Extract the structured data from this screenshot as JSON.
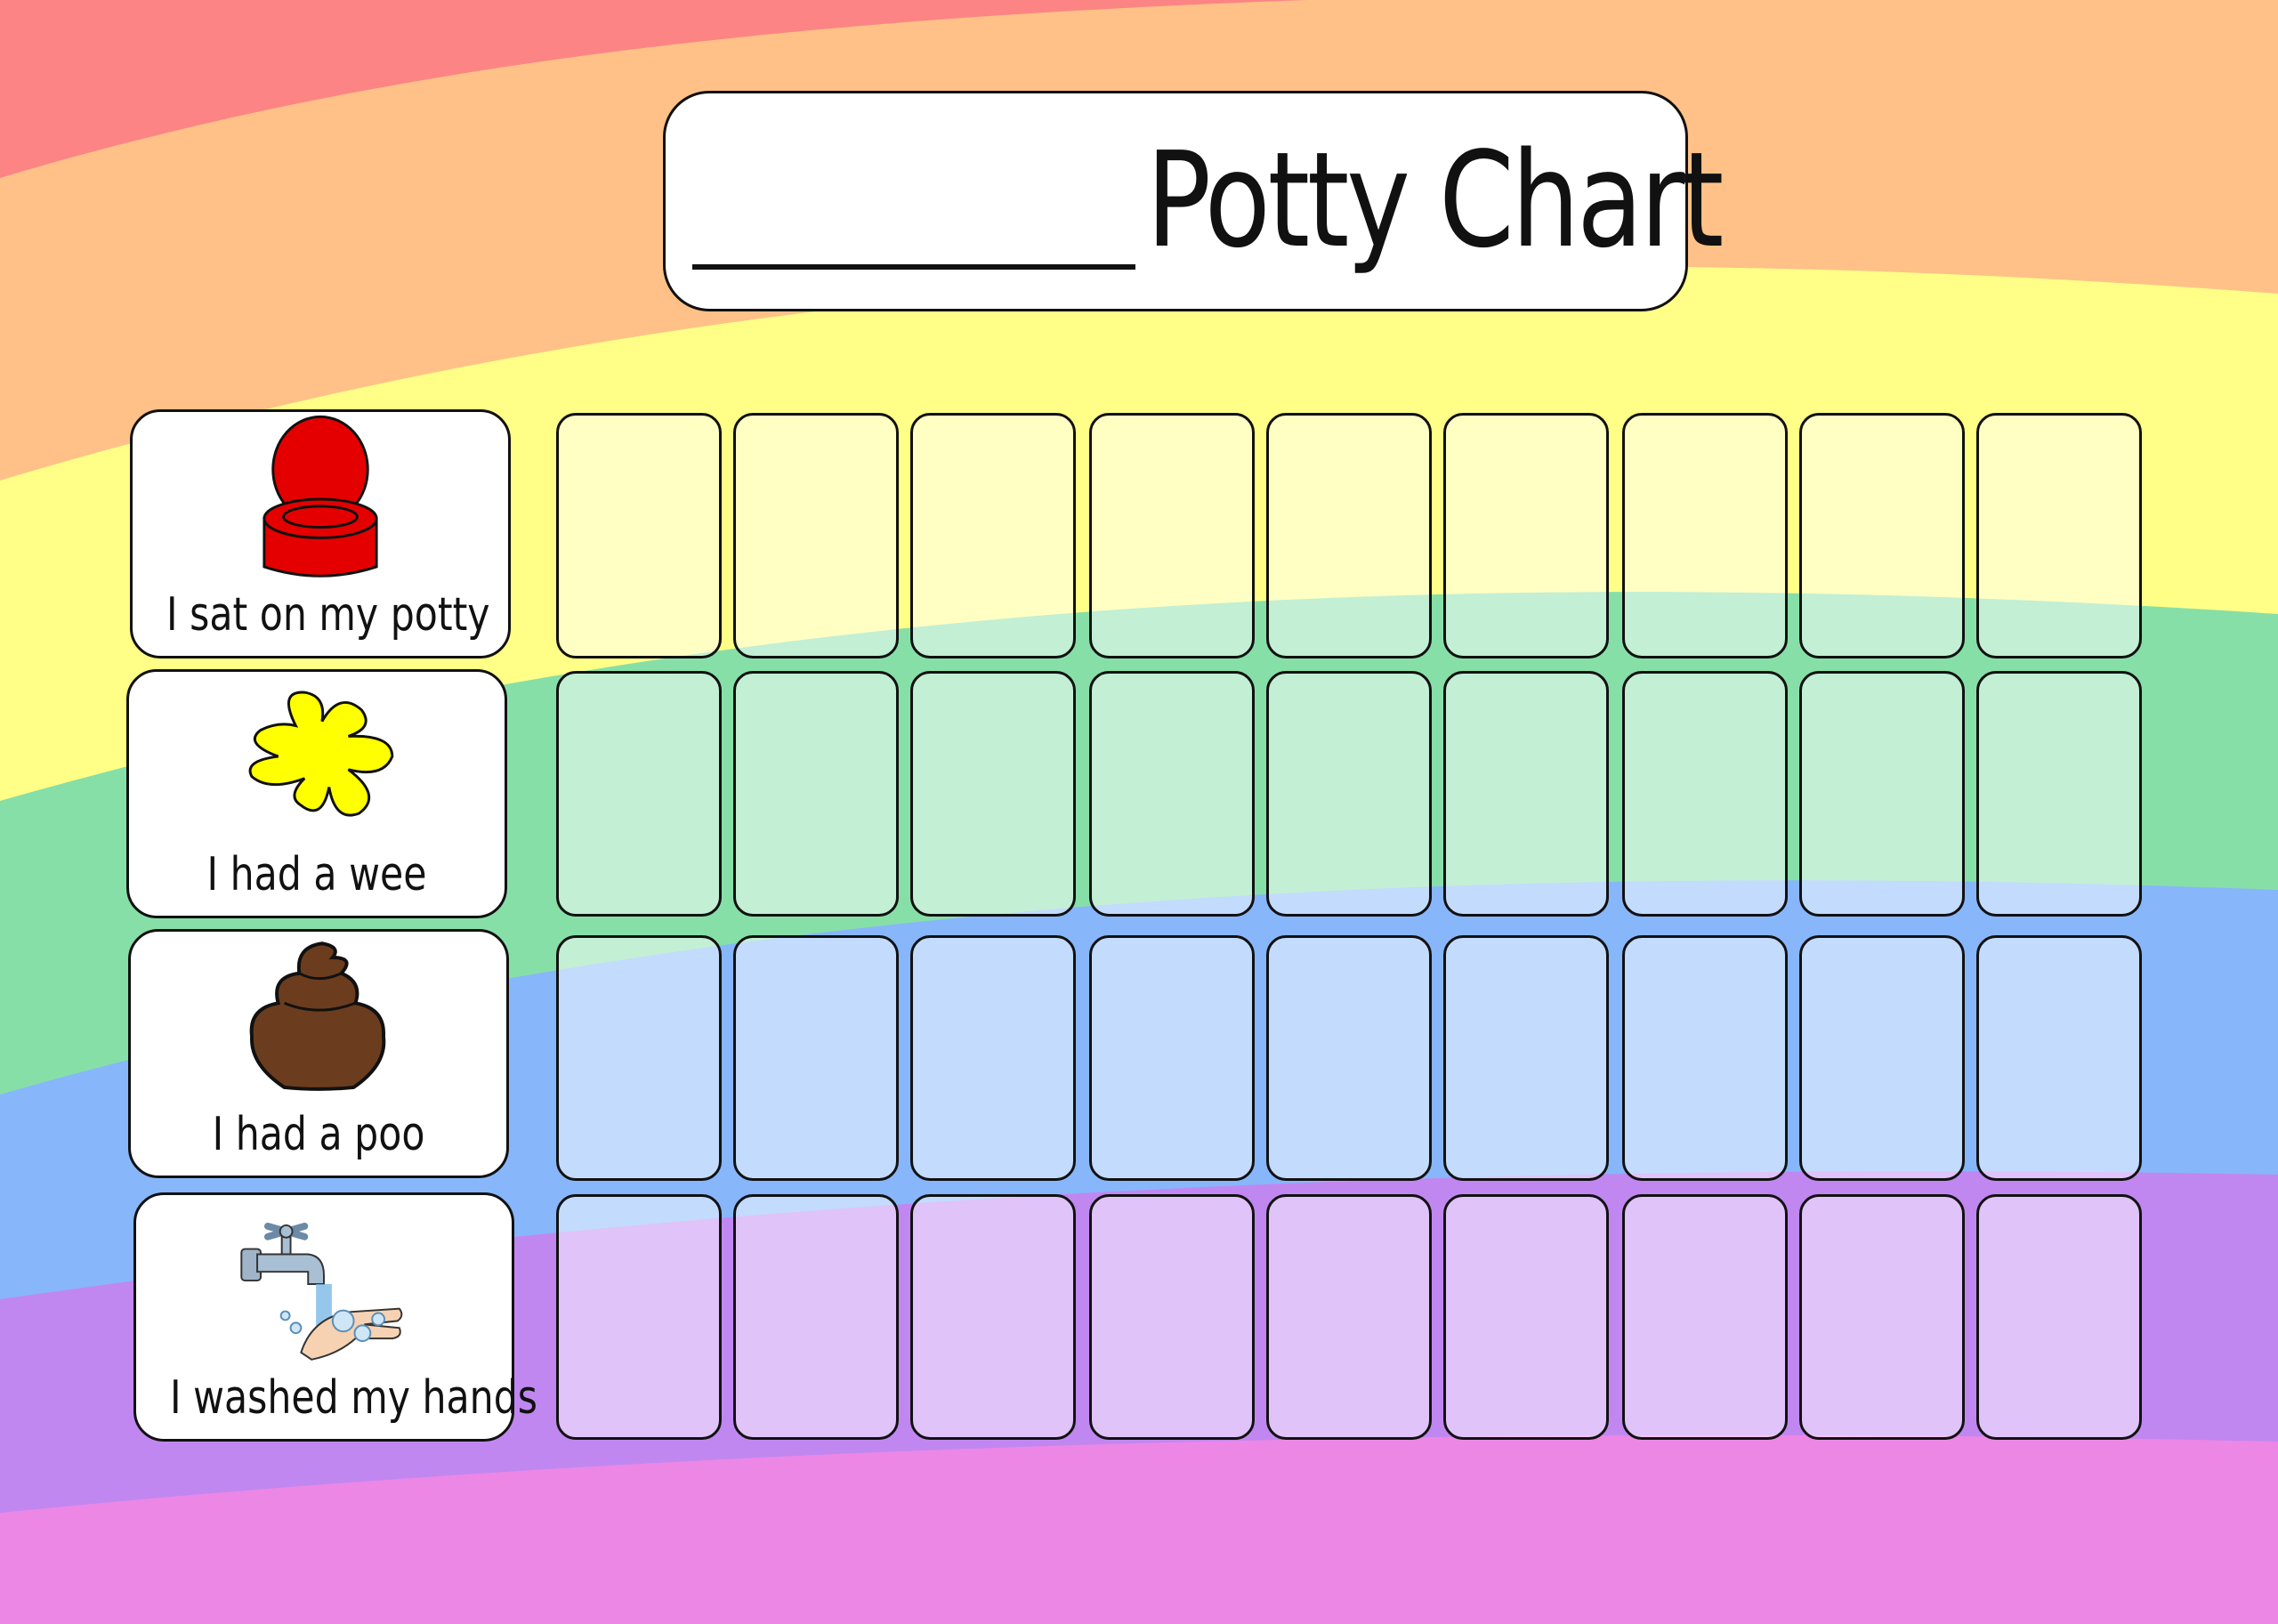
{
  "title": {
    "blank_line": "",
    "text": "Potty Chart"
  },
  "background": {
    "bands": [
      "#fc8484",
      "#ffc187",
      "#ffff87",
      "#87dfa8",
      "#87b6fb",
      "#c187f0",
      "#ec87e6"
    ]
  },
  "tasks": [
    {
      "label": "I sat on my potty",
      "icon": "potty-icon",
      "color": "#e50000"
    },
    {
      "label": "I had a wee",
      "icon": "wee-splash-icon",
      "color": "#ffff00"
    },
    {
      "label": "I had a poo",
      "icon": "poo-icon",
      "color": "#6b3d1e"
    },
    {
      "label": "I washed my hands",
      "icon": "hand-washing-tap-icon",
      "color": "#9ec7e8"
    }
  ],
  "grid": {
    "columns": 9,
    "rows": 4,
    "stickers": []
  }
}
